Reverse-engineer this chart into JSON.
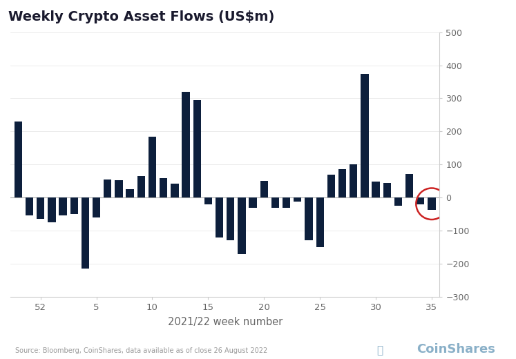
{
  "title": "Weekly Crypto Asset Flows (US$m)",
  "xlabel": "2021/22 week number",
  "bar_color": "#0d1f3c",
  "background_color": "#ffffff",
  "source_text": "Source: Bloomberg, CoinShares, data available as of close 26 August 2022",
  "ylim": [
    -300,
    500
  ],
  "yticks": [
    -300,
    -200,
    -100,
    0,
    100,
    200,
    300,
    400,
    500
  ],
  "weeks": [
    50,
    51,
    52,
    1,
    2,
    3,
    4,
    5,
    6,
    7,
    8,
    9,
    10,
    11,
    12,
    13,
    14,
    15,
    16,
    17,
    18,
    19,
    20,
    21,
    22,
    23,
    24,
    25,
    26,
    27,
    28,
    29,
    30,
    31,
    32,
    33,
    34,
    35
  ],
  "values": [
    230,
    -55,
    -65,
    -75,
    -55,
    -50,
    -215,
    -60,
    55,
    52,
    25,
    65,
    185,
    58,
    42,
    320,
    295,
    -20,
    -120,
    -130,
    -170,
    -30,
    50,
    -30,
    -30,
    -12,
    -130,
    -150,
    70,
    85,
    100,
    375,
    48,
    45,
    -25,
    72,
    -20,
    -38
  ],
  "xtick_weeks": [
    52,
    5,
    10,
    15,
    20,
    25,
    30,
    35
  ],
  "circle_x_idx": 37,
  "circle_color": "#cc2222",
  "coinshares_color": "#8ab0c8",
  "title_color": "#1a1a2e",
  "tick_color": "#666666",
  "grid_color": "#e8e8e8",
  "spine_color": "#cccccc",
  "zero_line_color": "#aaaaaa",
  "source_color": "#999999"
}
